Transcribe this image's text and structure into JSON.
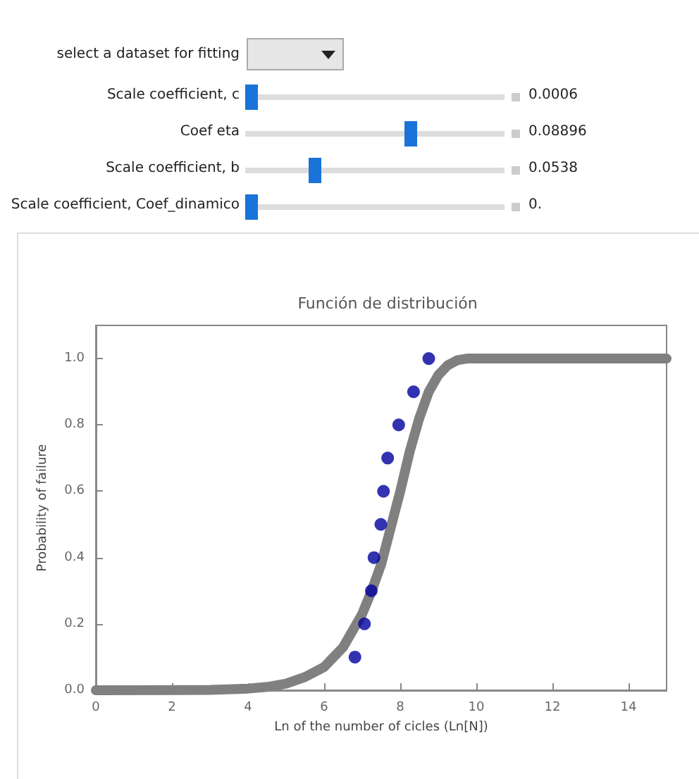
{
  "chart_data": {
    "type": "scatter",
    "title": "Función de distribución",
    "xlabel": "Ln of the number of cicles (Ln[N])",
    "ylabel": "Probability of failure",
    "annotations": [
      "select a dataset for fitting",
      "Scale coefficient, c",
      "0.0006",
      "Coef eta",
      "0.08896",
      "Scale coefficient, b",
      "0.0538",
      "Scale coefficient, Coef_dinamico",
      "0."
    ],
    "xlim": [
      0,
      15
    ],
    "xticks": [
      0,
      2,
      4,
      6,
      8,
      10,
      12,
      14
    ],
    "ylim": [
      0,
      1.1
    ],
    "yticks": [
      {
        "value": 0,
        "label": "0.0"
      },
      0.2,
      0.4,
      0.6,
      0.8,
      {
        "value": 1,
        "label": "1.0"
      }
    ],
    "grid": false,
    "series": [
      {
        "type": "line",
        "color": "#808080",
        "marker": "none",
        "line_style": "solid",
        "x": [
          0,
          3,
          4,
          4.5,
          5,
          5.5,
          6,
          6.25,
          6.5,
          6.75,
          7,
          7.25,
          7.5,
          7.75,
          8,
          8.25,
          8.5,
          8.75,
          9,
          9.25,
          9.5,
          9.75,
          10,
          12,
          15
        ],
        "values": [
          0,
          0.001,
          0.005,
          0.01,
          0.02,
          0.04,
          0.07,
          0.1,
          0.13,
          0.18,
          0.23,
          0.3,
          0.38,
          0.49,
          0.6,
          0.72,
          0.82,
          0.9,
          0.95,
          0.98,
          0.995,
          1,
          1,
          1,
          1
        ]
      },
      {
        "color": "#00009f",
        "marker": "circle",
        "x": [
          6.81,
          7.06,
          7.24,
          7.31,
          7.49,
          7.56,
          7.67,
          7.96,
          8.35,
          8.75
        ],
        "values": [
          0.1,
          0.2,
          0.3,
          0.4,
          0.5,
          0.6,
          0.7,
          0.8,
          0.9,
          1.0
        ]
      }
    ]
  }
}
